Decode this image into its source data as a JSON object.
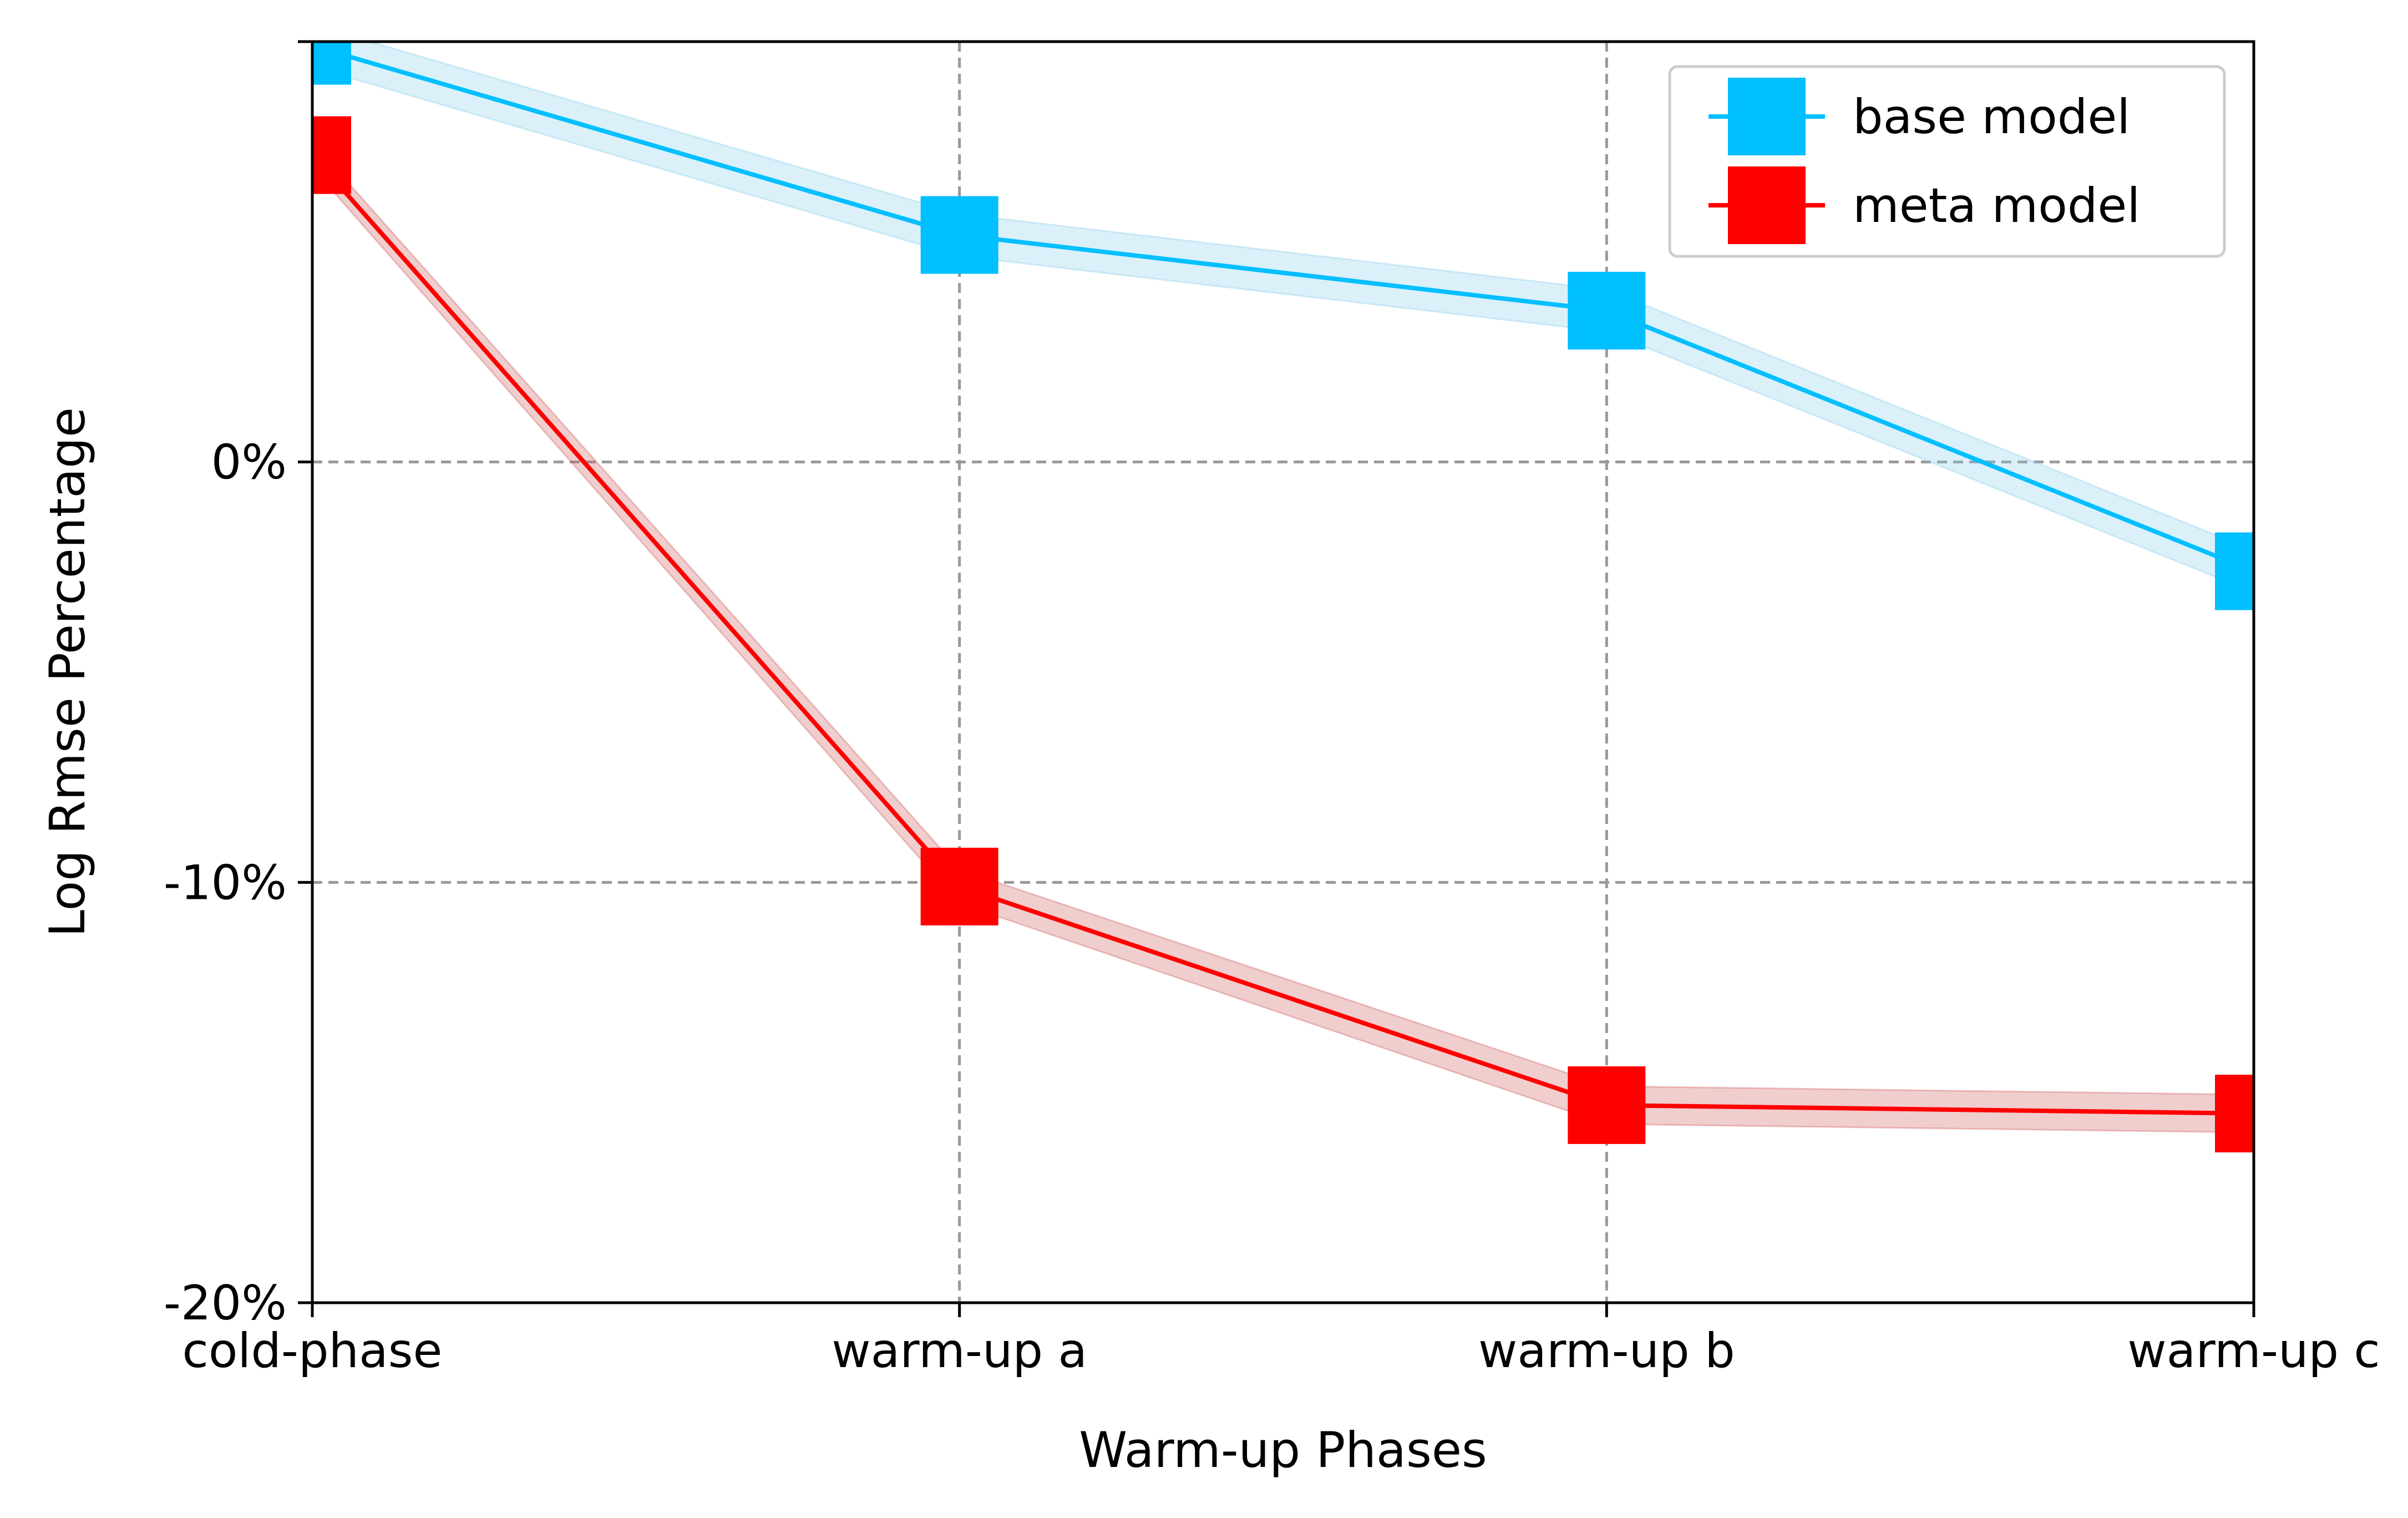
{
  "chart_data": {
    "type": "line",
    "title": "",
    "xlabel": "Warm-up Phases",
    "ylabel": "Log Rmse Percentage",
    "categories": [
      "cold-phase",
      "warm-up a",
      "warm-up b",
      "warm-up c"
    ],
    "ylim": [
      -20,
      10
    ],
    "yticks": [
      -20,
      -10,
      0
    ],
    "ytick_labels": [
      "-20%",
      "-10%",
      "0%"
    ],
    "y_unit": "%",
    "grid": true,
    "legend_position": "top-right",
    "series": [
      {
        "name": "base model",
        "color": "#00bfff",
        "band_color": "#87ceeb",
        "marker": "square",
        "values": [
          9.9,
          5.4,
          3.6,
          -2.6
        ],
        "band": [
          0.5,
          0.5,
          0.5,
          0.5
        ]
      },
      {
        "name": "meta model",
        "color": "#ff0000",
        "band_color": "#cd5c5c",
        "marker": "square",
        "values": [
          7.3,
          -10.1,
          -15.3,
          -15.5
        ],
        "band": [
          0.3,
          0.4,
          0.45,
          0.45
        ]
      }
    ]
  }
}
